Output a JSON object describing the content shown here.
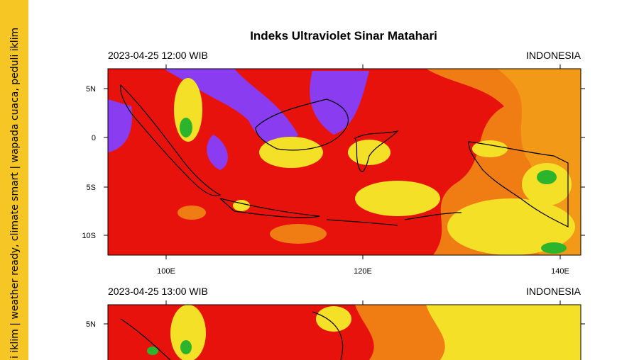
{
  "sidebar": {
    "text": "i iklim  |  weather ready, climate smart  |  wapada cuaca, peduli iklim"
  },
  "title": "Indeks Ultraviolet Sinar Matahari",
  "panels": [
    {
      "time": "2023-04-25  12:00 WIB",
      "region": "INDONESIA",
      "lat_labels": [
        "5N",
        "0",
        "5S",
        "10S"
      ],
      "lon_labels": [
        "100E",
        "120E",
        "140E"
      ]
    },
    {
      "time": "2023-04-25  13:00 WIB",
      "region": "INDONESIA",
      "lat_labels": [
        "5N"
      ]
    }
  ]
}
